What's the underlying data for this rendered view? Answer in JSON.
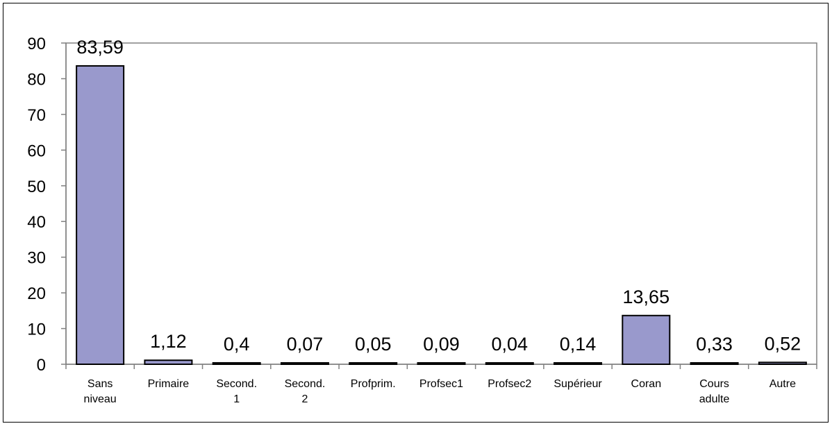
{
  "chart_data": {
    "type": "bar",
    "categories": [
      "Sans\nniveau",
      "Primaire",
      "Second.\n1",
      "Second.\n2",
      "Profprim.",
      "Profsec1",
      "Profsec2",
      "Supérieur",
      "Coran",
      "Cours\nadulte",
      "Autre"
    ],
    "values": [
      83.59,
      1.12,
      0.4,
      0.07,
      0.05,
      0.09,
      0.04,
      0.14,
      13.65,
      0.33,
      0.52
    ],
    "value_labels": [
      "83,59",
      "1,12",
      "0,4",
      "0,07",
      "0,05",
      "0,09",
      "0,04",
      "0,14",
      "13,65",
      "0,33",
      "0,52"
    ],
    "ylim": [
      0,
      90
    ],
    "yticks": [
      0,
      10,
      20,
      30,
      40,
      50,
      60,
      70,
      80,
      90
    ],
    "grid": false,
    "legend": "none",
    "colors": {
      "bar": "#9999cc",
      "bar_stroke": "#000000",
      "axis": "#808080"
    }
  }
}
